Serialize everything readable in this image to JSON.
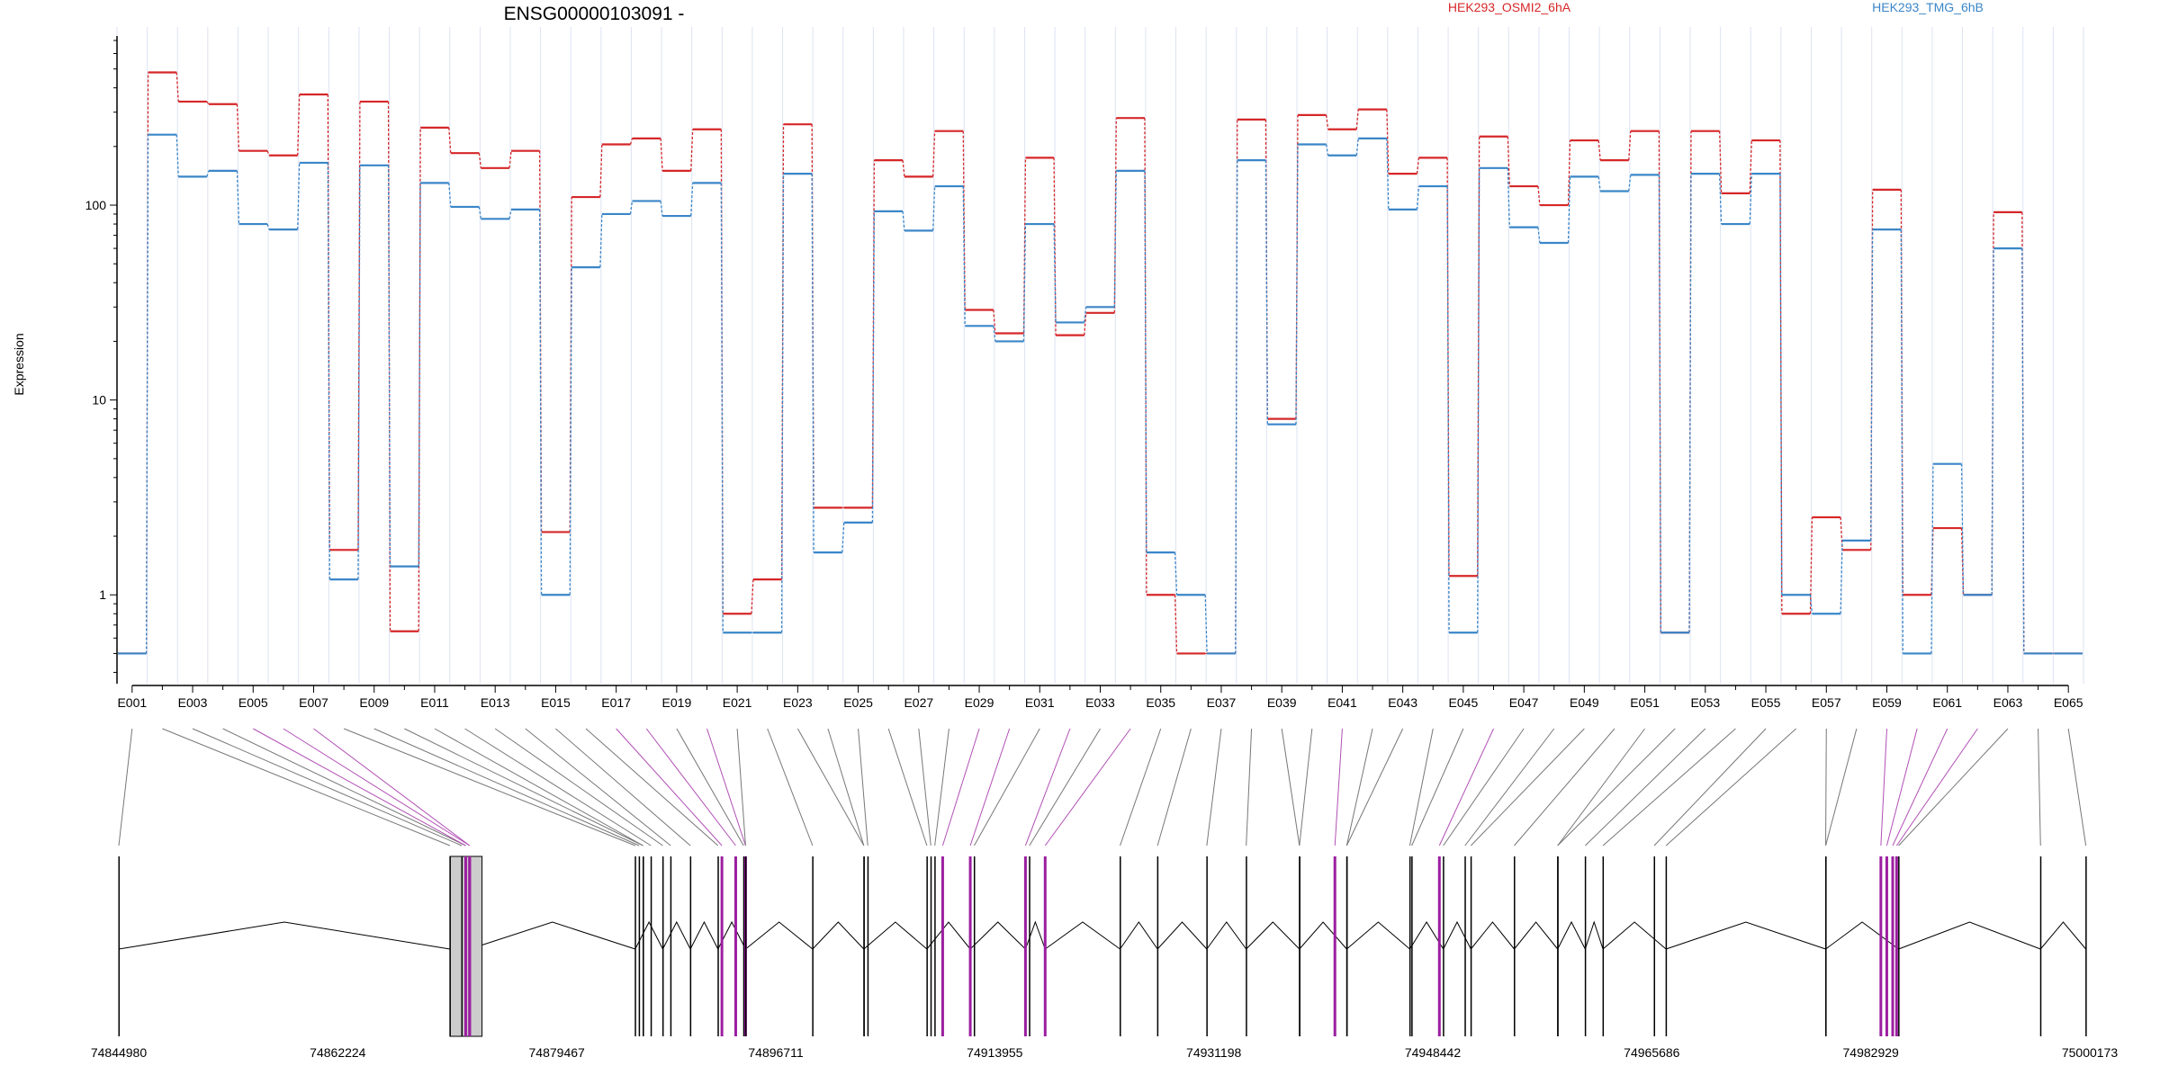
{
  "chart_data": {
    "type": "line",
    "title": "ENSG00000103091 -",
    "ylabel": "Expression",
    "xlabel": "",
    "yscale": "log",
    "ylim": [
      0.35,
      700
    ],
    "yticks": [
      1,
      10,
      100
    ],
    "ytick_labels": [
      "1",
      "10",
      "100"
    ],
    "grid": "vertical exon gridlines",
    "legend_position": "top",
    "categories": [
      "E001",
      "E002",
      "E003",
      "E004",
      "E005",
      "E006",
      "E007",
      "E008",
      "E009",
      "E010",
      "E011",
      "E012",
      "E013",
      "E014",
      "E015",
      "E016",
      "E017",
      "E018",
      "E019",
      "E020",
      "E021",
      "E022",
      "E023",
      "E024",
      "E025",
      "E026",
      "E027",
      "E028",
      "E029",
      "E030",
      "E031",
      "E032",
      "E033",
      "E034",
      "E035",
      "E036",
      "E037",
      "E038",
      "E039",
      "E040",
      "E041",
      "E042",
      "E043",
      "E044",
      "E045",
      "E046",
      "E047",
      "E048",
      "E049",
      "E050",
      "E051",
      "E052",
      "E053",
      "E054",
      "E055",
      "E056",
      "E057",
      "E058",
      "E059",
      "E060",
      "E061",
      "E062",
      "E063",
      "E064",
      "E065"
    ],
    "xtick_labels": [
      "E001",
      "E003",
      "E005",
      "E007",
      "E009",
      "E011",
      "E013",
      "E015",
      "E017",
      "E019",
      "E021",
      "E023",
      "E025",
      "E027",
      "E029",
      "E031",
      "E033",
      "E035",
      "E037",
      "E039",
      "E041",
      "E043",
      "E045",
      "E047",
      "E049",
      "E051",
      "E053",
      "E055",
      "E057",
      "E059",
      "E061",
      "E063",
      "E065"
    ],
    "series": [
      {
        "name": "HEK293_OSMI2_6hA",
        "color": "#d62728",
        "values": [
          0.5,
          480,
          340,
          330,
          190,
          180,
          370,
          1.7,
          340,
          0.65,
          250,
          185,
          155,
          190,
          2.1,
          110,
          205,
          220,
          150,
          245,
          0.8,
          1.2,
          260,
          2.8,
          2.8,
          170,
          140,
          240,
          29,
          22,
          175,
          21.5,
          28,
          280,
          1.0,
          0.5,
          0.5,
          275,
          8,
          290,
          245,
          310,
          145,
          175,
          1.25,
          225,
          125,
          100,
          215,
          170,
          240,
          0.64,
          240,
          115,
          215,
          0.8,
          2.5,
          1.7,
          120,
          1.0,
          2.2,
          1.0,
          92,
          0.5,
          0.5
        ]
      },
      {
        "name": "HEK293_TMG_6hB",
        "color": "#3a86c8",
        "values": [
          0.5,
          230,
          140,
          150,
          80,
          75,
          165,
          1.2,
          160,
          1.4,
          130,
          98,
          85,
          95,
          1.0,
          48,
          90,
          105,
          88,
          130,
          0.64,
          0.64,
          145,
          1.65,
          2.35,
          93,
          74,
          125,
          24,
          20,
          80,
          25,
          30,
          150,
          1.65,
          1.0,
          0.5,
          170,
          7.5,
          205,
          180,
          220,
          95,
          125,
          0.64,
          155,
          77,
          64,
          140,
          118,
          143,
          0.64,
          145,
          80,
          145,
          1.0,
          0.8,
          1.9,
          75,
          0.5,
          4.7,
          1.0,
          60,
          0.5,
          0.5
        ]
      }
    ],
    "genome_axis_labels": [
      "74844980",
      "74862224",
      "74879467",
      "74896711",
      "74913955",
      "74931198",
      "74948442",
      "74965686",
      "74982929",
      "75000173"
    ]
  }
}
